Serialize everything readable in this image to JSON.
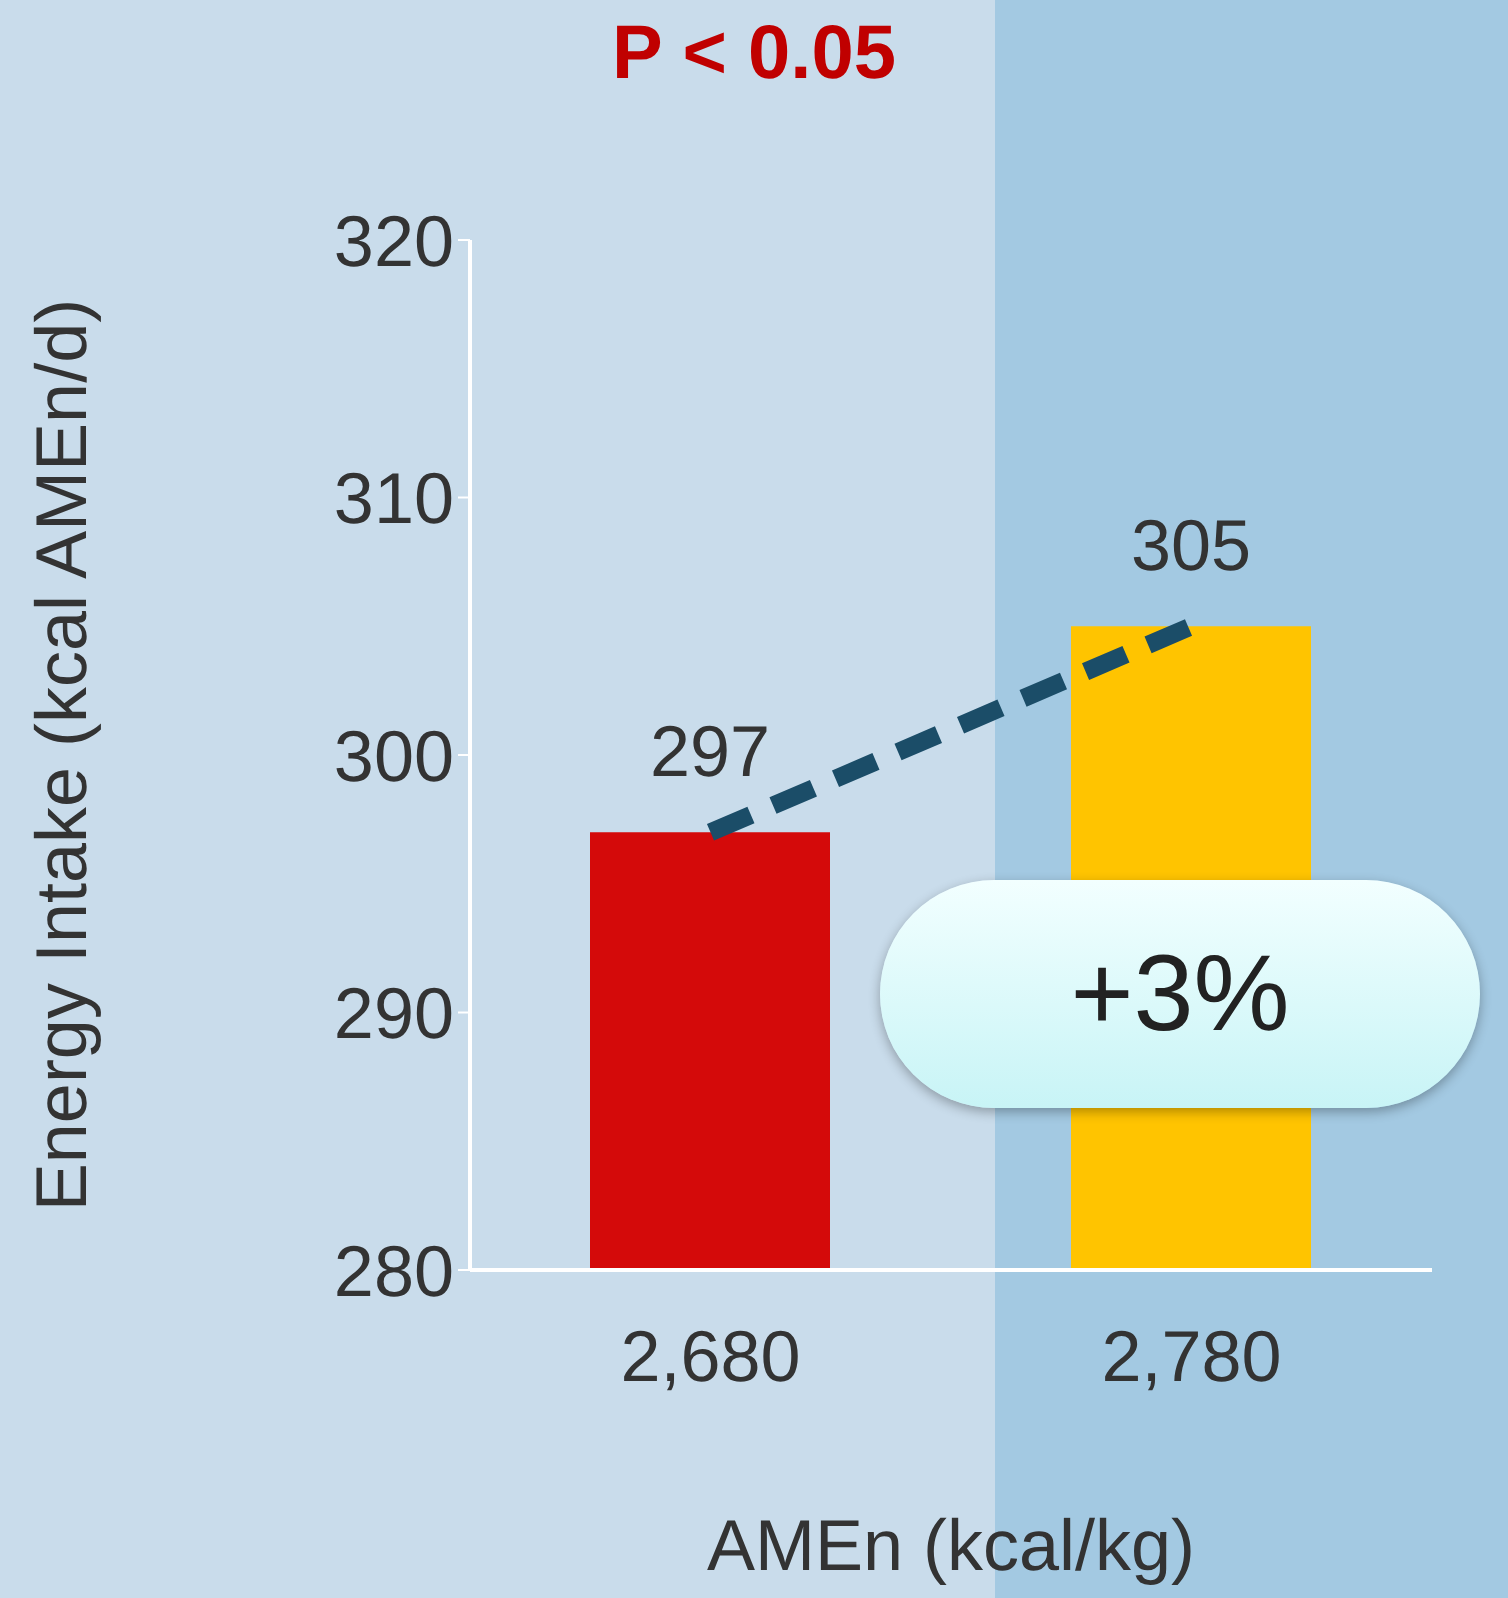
{
  "chart_data": {
    "type": "bar",
    "title": "P < 0.05",
    "xlabel": "AMEn (kcal/kg)",
    "ylabel": "Energy Intake (kcal AMEn/d)",
    "categories": [
      "2,680",
      "2,780"
    ],
    "series": [
      {
        "colors": [
          "#d40a0a",
          "#ffc400"
        ],
        "values": [
          297,
          305
        ],
        "value_labels": [
          "297",
          "305"
        ]
      },
      {
        "type": "line",
        "color": "#1b4d68",
        "line_style": "dashed",
        "values": [
          297,
          305
        ]
      }
    ],
    "ylim": [
      280,
      320
    ],
    "yticks": [
      280,
      290,
      300,
      310,
      320
    ],
    "annotations": [
      "+3%"
    ]
  }
}
